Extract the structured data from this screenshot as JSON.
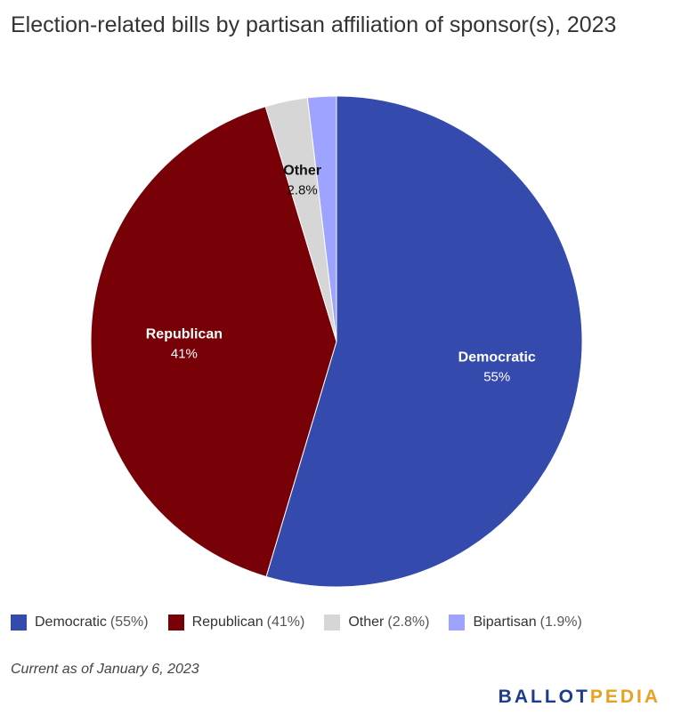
{
  "title": "Election-related bills by partisan affiliation of sponsor(s), 2023",
  "chart_data": {
    "type": "pie",
    "title": "Election-related bills by partisan affiliation of sponsor(s), 2023",
    "slices": [
      {
        "label": "Democratic",
        "value": 55,
        "display": "55%",
        "legend_pct": "(55%)",
        "color": "#344aad"
      },
      {
        "label": "Republican",
        "value": 41,
        "display": "41%",
        "legend_pct": "(41%)",
        "color": "#780107"
      },
      {
        "label": "Other",
        "value": 2.8,
        "display": "2.8%",
        "legend_pct": "(2.8%)",
        "color": "#d6d6d6"
      },
      {
        "label": "Bipartisan",
        "value": 1.9,
        "display": "",
        "legend_pct": "(1.9%)",
        "color": "#9da3ff"
      }
    ],
    "legend_position": "bottom"
  },
  "footnote": "Current as of January 6, 2023",
  "brand": {
    "part1": "BALLOT",
    "part2": "PEDIA"
  }
}
